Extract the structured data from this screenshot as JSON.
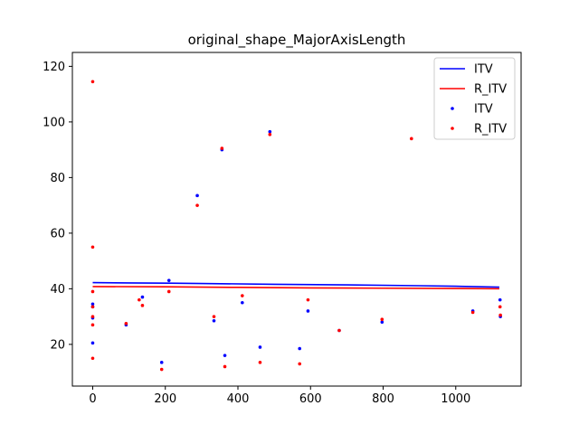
{
  "chart_data": {
    "type": "scatter",
    "title": "original_shape_MajorAxisLength",
    "xlabel": "",
    "ylabel": "",
    "xlim": [
      -56,
      1180
    ],
    "ylim": [
      5,
      125
    ],
    "xticks": [
      0,
      200,
      400,
      600,
      800,
      1000
    ],
    "yticks": [
      20,
      40,
      60,
      80,
      100,
      120
    ],
    "xtick_labels": [
      "0",
      "200",
      "400",
      "600",
      "800",
      "1000"
    ],
    "ytick_labels": [
      "20",
      "40",
      "60",
      "80",
      "100",
      "120"
    ],
    "legend": {
      "position": "top-right",
      "entries": [
        {
          "label": "ITV",
          "kind": "line",
          "color": "#0000ff"
        },
        {
          "label": "R_ITV",
          "kind": "line",
          "color": "#ff0000"
        },
        {
          "label": "ITV",
          "kind": "point",
          "color": "#0000ff"
        },
        {
          "label": "R_ITV",
          "kind": "point",
          "color": "#ff0000"
        }
      ]
    },
    "lines": [
      {
        "name": "ITV",
        "color": "#0000ff",
        "x": [
          0,
          100,
          210,
          300,
          500,
          700,
          900,
          1000,
          1120
        ],
        "y": [
          42.2,
          42.1,
          42.0,
          41.9,
          41.6,
          41.4,
          41.1,
          40.9,
          40.6
        ]
      },
      {
        "name": "R_ITV",
        "color": "#ff0000",
        "x": [
          0,
          200,
          400,
          600,
          800,
          1000,
          1120
        ],
        "y": [
          40.8,
          40.7,
          40.5,
          40.3,
          40.2,
          40.1,
          40.0
        ]
      }
    ],
    "series": [
      {
        "name": "ITV",
        "color": "#0000ff",
        "points": [
          [
            0,
            20.5
          ],
          [
            0,
            29.5
          ],
          [
            0,
            33.5
          ],
          [
            0,
            34.5
          ],
          [
            92,
            27
          ],
          [
            137,
            37
          ],
          [
            190,
            13.5
          ],
          [
            210,
            43
          ],
          [
            288,
            73.5
          ],
          [
            334,
            28.5
          ],
          [
            356,
            90
          ],
          [
            364,
            16
          ],
          [
            412,
            35
          ],
          [
            461,
            19
          ],
          [
            488,
            96.5
          ],
          [
            570,
            18.5
          ],
          [
            593,
            32
          ],
          [
            679,
            25
          ],
          [
            797,
            28
          ],
          [
            1047,
            32
          ],
          [
            1122,
            36
          ],
          [
            1123,
            30
          ]
        ]
      },
      {
        "name": "R_ITV",
        "color": "#ff0000",
        "points": [
          [
            0,
            114.5
          ],
          [
            0,
            55
          ],
          [
            0,
            39
          ],
          [
            0,
            33.5
          ],
          [
            0,
            30
          ],
          [
            0,
            27
          ],
          [
            0,
            15
          ],
          [
            92,
            27.5
          ],
          [
            128,
            36
          ],
          [
            137,
            34
          ],
          [
            190,
            11
          ],
          [
            210,
            39
          ],
          [
            288,
            70
          ],
          [
            334,
            30
          ],
          [
            356,
            90.5
          ],
          [
            364,
            12
          ],
          [
            412,
            37.5
          ],
          [
            461,
            13.5
          ],
          [
            488,
            95.5
          ],
          [
            570,
            13
          ],
          [
            593,
            36
          ],
          [
            679,
            25
          ],
          [
            797,
            29
          ],
          [
            878,
            94
          ],
          [
            1047,
            31.5
          ],
          [
            1122,
            33.5
          ],
          [
            1123,
            30.5
          ]
        ]
      }
    ]
  }
}
